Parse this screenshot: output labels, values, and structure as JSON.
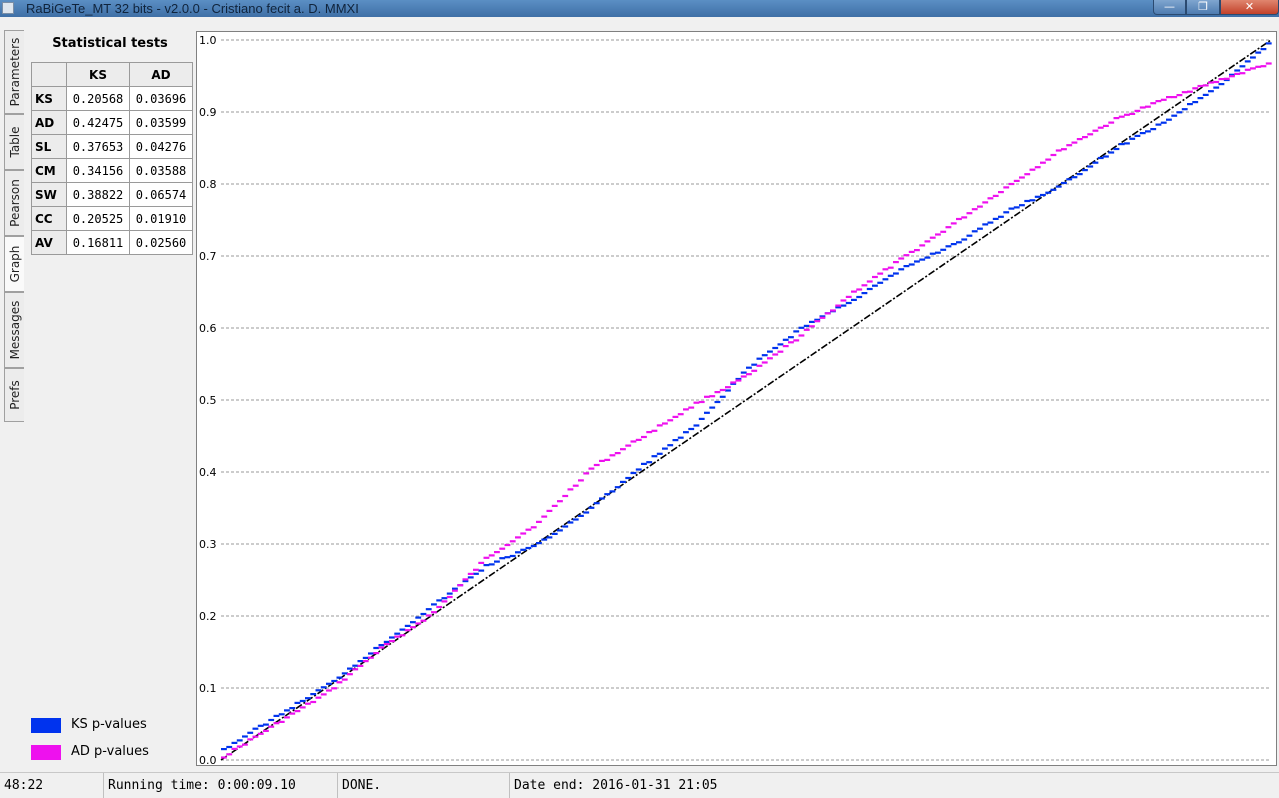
{
  "window": {
    "title": "RaBiGeTe_MT 32 bits - v2.0.0 - Cristiano fecit a. D. MMXI",
    "minimize": "—",
    "maximize": "❐",
    "close": "✕"
  },
  "tabs": [
    "Parameters",
    "Table",
    "Pearson",
    "Graph",
    "Messages",
    "Prefs"
  ],
  "active_tab": "Graph",
  "stats": {
    "title": "Statistical tests",
    "columns": [
      "KS",
      "AD"
    ],
    "rows": [
      {
        "test": "KS",
        "ks": "0.20568",
        "ad": "0.03696"
      },
      {
        "test": "AD",
        "ks": "0.42475",
        "ad": "0.03599"
      },
      {
        "test": "SL",
        "ks": "0.37653",
        "ad": "0.04276"
      },
      {
        "test": "CM",
        "ks": "0.34156",
        "ad": "0.03588"
      },
      {
        "test": "SW",
        "ks": "0.38822",
        "ad": "0.06574"
      },
      {
        "test": "CC",
        "ks": "0.20525",
        "ad": "0.01910"
      },
      {
        "test": "AV",
        "ks": "0.16811",
        "ad": "0.02560"
      }
    ]
  },
  "legend": [
    {
      "label": "KS p-values",
      "color": "#0033ee"
    },
    {
      "label": "AD p-values",
      "color": "#ee11ee"
    }
  ],
  "chart_data": {
    "type": "scatter",
    "ylim": [
      0.0,
      1.0
    ],
    "xlim": [
      0.0,
      1.0
    ],
    "y_ticks": [
      "0.0",
      "0.1",
      "0.2",
      "0.3",
      "0.4",
      "0.5",
      "0.6",
      "0.7",
      "0.8",
      "0.9",
      "1.0"
    ],
    "grid": "horizontal dashed",
    "reference_line": {
      "from": [
        0,
        0
      ],
      "to": [
        1,
        1
      ],
      "color": "#000000",
      "style": "dash-dot"
    },
    "series": [
      {
        "name": "KS p-values",
        "color": "#0033ee",
        "x": [
          0.0,
          0.05,
          0.1,
          0.15,
          0.2,
          0.25,
          0.3,
          0.35,
          0.4,
          0.45,
          0.5,
          0.55,
          0.6,
          0.65,
          0.7,
          0.75,
          0.8,
          0.85,
          0.9,
          0.95,
          1.0
        ],
        "y": [
          0.015,
          0.06,
          0.105,
          0.16,
          0.215,
          0.27,
          0.3,
          0.35,
          0.41,
          0.465,
          0.545,
          0.6,
          0.64,
          0.685,
          0.72,
          0.765,
          0.8,
          0.85,
          0.89,
          0.94,
          1.0
        ]
      },
      {
        "name": "AD p-values",
        "color": "#ee11ee",
        "x": [
          0.0,
          0.05,
          0.1,
          0.15,
          0.2,
          0.25,
          0.3,
          0.35,
          0.4,
          0.45,
          0.5,
          0.55,
          0.6,
          0.65,
          0.7,
          0.75,
          0.8,
          0.85,
          0.9,
          0.95,
          1.0
        ],
        "y": [
          0.005,
          0.05,
          0.095,
          0.155,
          0.205,
          0.28,
          0.33,
          0.405,
          0.45,
          0.495,
          0.535,
          0.59,
          0.65,
          0.7,
          0.75,
          0.8,
          0.85,
          0.89,
          0.92,
          0.945,
          0.97
        ]
      }
    ]
  },
  "status": {
    "position": "48:22",
    "running_time": "Running time: 0:00:09.10",
    "state": "DONE.",
    "date_end": "Date end: 2016-01-31 21:05"
  }
}
